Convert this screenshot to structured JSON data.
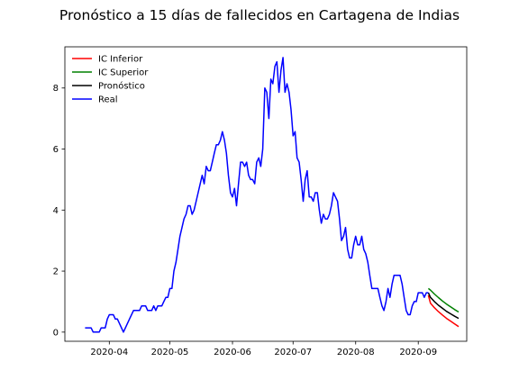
{
  "chart_data": {
    "type": "line",
    "title": "Pronóstico a 15 días de fallecidos en Cartagena de Indias",
    "xlabel": "",
    "ylabel": "",
    "x_range": [
      "2020-03-10",
      "2020-09-25"
    ],
    "ylim": [
      -0.3,
      9.35
    ],
    "x_ticks": [
      "2020-04",
      "2020-05",
      "2020-06",
      "2020-07",
      "2020-08",
      "2020-09"
    ],
    "y_ticks": [
      0,
      2,
      4,
      6,
      8
    ],
    "grid": false,
    "legend_position": "top-left",
    "series": [
      {
        "name": "IC Inferior",
        "color": "#ff0000",
        "points": [
          [
            "2020-09-06",
            1.21
          ],
          [
            "2020-09-07",
            0.95
          ],
          [
            "2020-09-09",
            0.8
          ],
          [
            "2020-09-11",
            0.67
          ],
          [
            "2020-09-13",
            0.56
          ],
          [
            "2020-09-15",
            0.45
          ],
          [
            "2020-09-17",
            0.36
          ],
          [
            "2020-09-19",
            0.27
          ],
          [
            "2020-09-21",
            0.18
          ]
        ]
      },
      {
        "name": "IC Superior",
        "color": "#008000",
        "points": [
          [
            "2020-09-06",
            1.43
          ],
          [
            "2020-09-07",
            1.38
          ],
          [
            "2020-09-09",
            1.25
          ],
          [
            "2020-09-11",
            1.13
          ],
          [
            "2020-09-13",
            1.02
          ],
          [
            "2020-09-15",
            0.92
          ],
          [
            "2020-09-17",
            0.83
          ],
          [
            "2020-09-19",
            0.74
          ],
          [
            "2020-09-21",
            0.66
          ]
        ]
      },
      {
        "name": "Pronóstico",
        "color": "#000000",
        "points": [
          [
            "2020-09-06",
            1.29
          ],
          [
            "2020-09-07",
            1.14
          ],
          [
            "2020-09-09",
            1.0
          ],
          [
            "2020-09-11",
            0.88
          ],
          [
            "2020-09-13",
            0.78
          ],
          [
            "2020-09-15",
            0.68
          ],
          [
            "2020-09-17",
            0.6
          ],
          [
            "2020-09-19",
            0.52
          ],
          [
            "2020-09-21",
            0.45
          ]
        ]
      },
      {
        "name": "Real",
        "color": "#0000ff",
        "points": [
          [
            "2020-03-20",
            0.14
          ],
          [
            "2020-03-23",
            0.14
          ],
          [
            "2020-03-24",
            0.0
          ],
          [
            "2020-03-27",
            0.0
          ],
          [
            "2020-03-28",
            0.14
          ],
          [
            "2020-03-30",
            0.14
          ],
          [
            "2020-03-31",
            0.43
          ],
          [
            "2020-04-01",
            0.57
          ],
          [
            "2020-04-03",
            0.57
          ],
          [
            "2020-04-04",
            0.43
          ],
          [
            "2020-04-05",
            0.43
          ],
          [
            "2020-04-08",
            0.0
          ],
          [
            "2020-04-11",
            0.43
          ],
          [
            "2020-04-13",
            0.71
          ],
          [
            "2020-04-16",
            0.71
          ],
          [
            "2020-04-17",
            0.86
          ],
          [
            "2020-04-19",
            0.86
          ],
          [
            "2020-04-20",
            0.71
          ],
          [
            "2020-04-22",
            0.71
          ],
          [
            "2020-04-23",
            0.86
          ],
          [
            "2020-04-24",
            0.71
          ],
          [
            "2020-04-25",
            0.86
          ],
          [
            "2020-04-27",
            0.86
          ],
          [
            "2020-04-28",
            1.0
          ],
          [
            "2020-04-29",
            1.14
          ],
          [
            "2020-04-30",
            1.14
          ],
          [
            "2020-05-01",
            1.43
          ],
          [
            "2020-05-02",
            1.43
          ],
          [
            "2020-05-03",
            2.0
          ],
          [
            "2020-05-04",
            2.29
          ],
          [
            "2020-05-05",
            2.71
          ],
          [
            "2020-05-06",
            3.14
          ],
          [
            "2020-05-07",
            3.43
          ],
          [
            "2020-05-08",
            3.71
          ],
          [
            "2020-05-09",
            3.86
          ],
          [
            "2020-05-10",
            4.14
          ],
          [
            "2020-05-11",
            4.14
          ],
          [
            "2020-05-12",
            3.86
          ],
          [
            "2020-05-13",
            4.0
          ],
          [
            "2020-05-14",
            4.29
          ],
          [
            "2020-05-15",
            4.57
          ],
          [
            "2020-05-16",
            4.86
          ],
          [
            "2020-05-17",
            5.14
          ],
          [
            "2020-05-18",
            4.86
          ],
          [
            "2020-05-19",
            5.43
          ],
          [
            "2020-05-20",
            5.29
          ],
          [
            "2020-05-21",
            5.29
          ],
          [
            "2020-05-22",
            5.57
          ],
          [
            "2020-05-23",
            5.86
          ],
          [
            "2020-05-24",
            6.14
          ],
          [
            "2020-05-25",
            6.14
          ],
          [
            "2020-05-26",
            6.29
          ],
          [
            "2020-05-27",
            6.57
          ],
          [
            "2020-05-28",
            6.29
          ],
          [
            "2020-05-29",
            5.86
          ],
          [
            "2020-05-30",
            5.14
          ],
          [
            "2020-05-31",
            4.57
          ],
          [
            "2020-06-01",
            4.43
          ],
          [
            "2020-06-02",
            4.71
          ],
          [
            "2020-06-03",
            4.14
          ],
          [
            "2020-06-04",
            4.86
          ],
          [
            "2020-06-05",
            5.57
          ],
          [
            "2020-06-06",
            5.57
          ],
          [
            "2020-06-07",
            5.43
          ],
          [
            "2020-06-08",
            5.57
          ],
          [
            "2020-06-09",
            5.14
          ],
          [
            "2020-06-10",
            5.0
          ],
          [
            "2020-06-11",
            5.0
          ],
          [
            "2020-06-12",
            4.86
          ],
          [
            "2020-06-13",
            5.57
          ],
          [
            "2020-06-14",
            5.71
          ],
          [
            "2020-06-15",
            5.43
          ],
          [
            "2020-06-16",
            6.0
          ],
          [
            "2020-06-17",
            8.0
          ],
          [
            "2020-06-18",
            7.86
          ],
          [
            "2020-06-19",
            7.0
          ],
          [
            "2020-06-20",
            8.29
          ],
          [
            "2020-06-21",
            8.14
          ],
          [
            "2020-06-22",
            8.71
          ],
          [
            "2020-06-23",
            8.86
          ],
          [
            "2020-06-24",
            7.86
          ],
          [
            "2020-06-25",
            8.57
          ],
          [
            "2020-06-26",
            9.0
          ],
          [
            "2020-06-27",
            7.86
          ],
          [
            "2020-06-28",
            8.14
          ],
          [
            "2020-06-29",
            7.86
          ],
          [
            "2020-06-30",
            7.29
          ],
          [
            "2020-07-01",
            6.43
          ],
          [
            "2020-07-02",
            6.57
          ],
          [
            "2020-07-03",
            5.71
          ],
          [
            "2020-07-04",
            5.57
          ],
          [
            "2020-07-05",
            5.0
          ],
          [
            "2020-07-06",
            4.29
          ],
          [
            "2020-07-07",
            5.0
          ],
          [
            "2020-07-08",
            5.29
          ],
          [
            "2020-07-09",
            4.43
          ],
          [
            "2020-07-10",
            4.43
          ],
          [
            "2020-07-11",
            4.29
          ],
          [
            "2020-07-12",
            4.57
          ],
          [
            "2020-07-13",
            4.57
          ],
          [
            "2020-07-14",
            4.0
          ],
          [
            "2020-07-15",
            3.57
          ],
          [
            "2020-07-16",
            3.86
          ],
          [
            "2020-07-17",
            3.71
          ],
          [
            "2020-07-18",
            3.71
          ],
          [
            "2020-07-19",
            3.86
          ],
          [
            "2020-07-20",
            4.14
          ],
          [
            "2020-07-21",
            4.57
          ],
          [
            "2020-07-22",
            4.43
          ],
          [
            "2020-07-23",
            4.29
          ],
          [
            "2020-07-24",
            3.71
          ],
          [
            "2020-07-25",
            3.0
          ],
          [
            "2020-07-26",
            3.14
          ],
          [
            "2020-07-27",
            3.43
          ],
          [
            "2020-07-28",
            2.71
          ],
          [
            "2020-07-29",
            2.43
          ],
          [
            "2020-07-30",
            2.43
          ],
          [
            "2020-07-31",
            2.86
          ],
          [
            "2020-08-01",
            3.14
          ],
          [
            "2020-08-02",
            2.86
          ],
          [
            "2020-08-03",
            2.86
          ],
          [
            "2020-08-04",
            3.14
          ],
          [
            "2020-08-05",
            2.71
          ],
          [
            "2020-08-06",
            2.57
          ],
          [
            "2020-08-07",
            2.29
          ],
          [
            "2020-08-08",
            1.86
          ],
          [
            "2020-08-09",
            1.43
          ],
          [
            "2020-08-12",
            1.43
          ],
          [
            "2020-08-13",
            1.14
          ],
          [
            "2020-08-14",
            0.86
          ],
          [
            "2020-08-15",
            0.71
          ],
          [
            "2020-08-16",
            1.0
          ],
          [
            "2020-08-17",
            1.43
          ],
          [
            "2020-08-18",
            1.14
          ],
          [
            "2020-08-19",
            1.57
          ],
          [
            "2020-08-20",
            1.86
          ],
          [
            "2020-08-23",
            1.86
          ],
          [
            "2020-08-24",
            1.57
          ],
          [
            "2020-08-25",
            1.14
          ],
          [
            "2020-08-26",
            0.71
          ],
          [
            "2020-08-27",
            0.57
          ],
          [
            "2020-08-28",
            0.57
          ],
          [
            "2020-08-29",
            0.86
          ],
          [
            "2020-08-30",
            1.0
          ],
          [
            "2020-08-31",
            1.0
          ],
          [
            "2020-09-01",
            1.29
          ],
          [
            "2020-09-03",
            1.29
          ],
          [
            "2020-09-04",
            1.14
          ],
          [
            "2020-09-05",
            1.29
          ],
          [
            "2020-09-06",
            1.29
          ]
        ]
      }
    ]
  }
}
